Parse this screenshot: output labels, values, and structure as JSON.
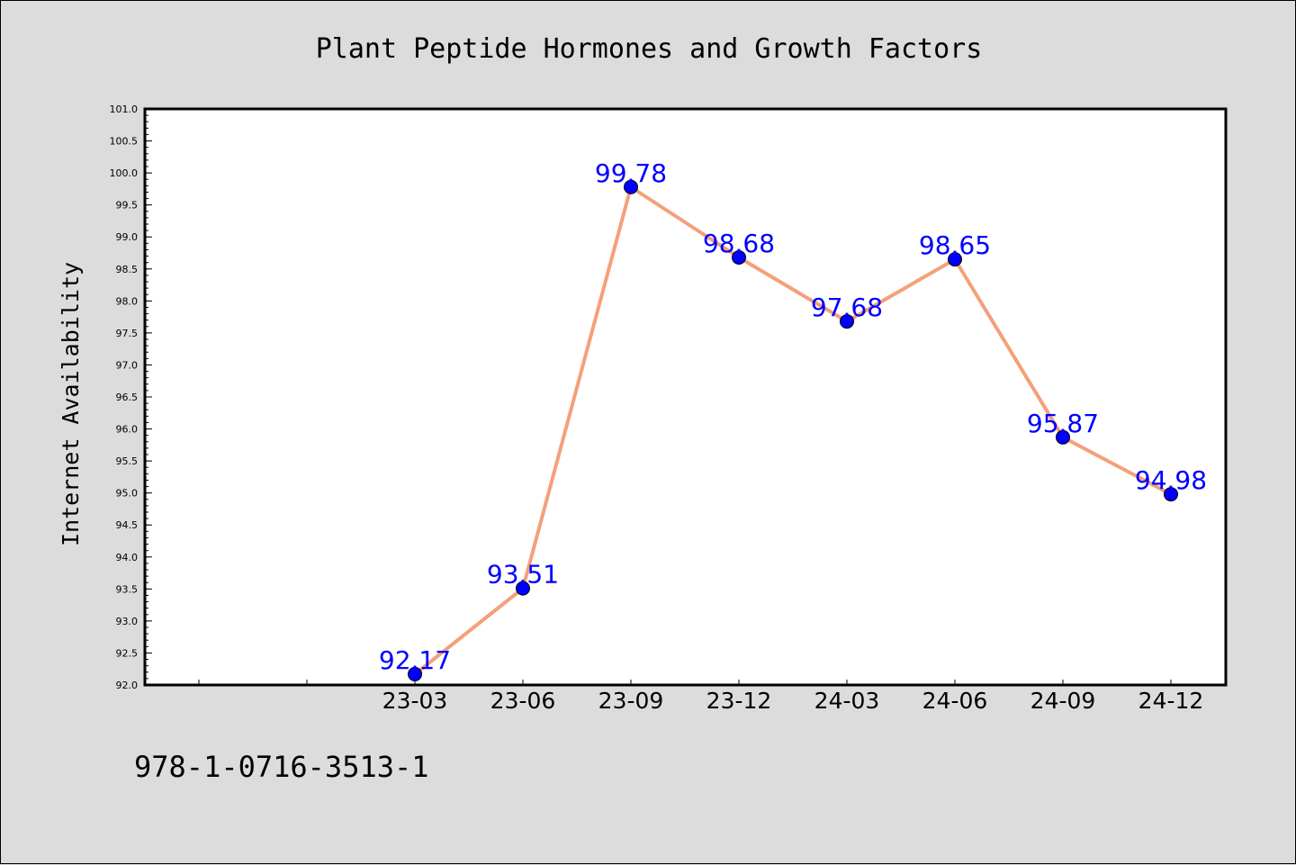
{
  "chart_data": {
    "type": "line",
    "title": "Plant Peptide Hormones and Growth Factors",
    "ylabel": "Internet Availability",
    "xlabel": "",
    "categories": [
      "",
      "",
      "23-03",
      "23-06",
      "23-09",
      "23-12",
      "24-03",
      "24-06",
      "24-09",
      "24-12"
    ],
    "series": [
      {
        "values": [
          null,
          null,
          92.17,
          93.51,
          99.78,
          98.68,
          97.68,
          98.65,
          95.87,
          94.98
        ],
        "labels": [
          "",
          "",
          "92.17",
          "93.51",
          "99.78",
          "98.68",
          "97.68",
          "98.65",
          "95.87",
          "94.98"
        ]
      }
    ],
    "ylim": [
      92.0,
      101.0
    ],
    "yticks": [
      "92.0",
      "92.5",
      "93.0",
      "93.5",
      "94.0",
      "94.5",
      "95.0",
      "95.5",
      "96.0",
      "96.5",
      "97.0",
      "97.5",
      "98.0",
      "98.5",
      "99.0",
      "99.5",
      "100.0",
      "100.5",
      "101.0"
    ],
    "grid": false,
    "line_color": "#f4a07a",
    "marker_color": "#0000ff",
    "label_color": "#0000ff",
    "background": "#dcdcdc",
    "plot_background": "#ffffff"
  },
  "footnote": "978-1-0716-3513-1"
}
